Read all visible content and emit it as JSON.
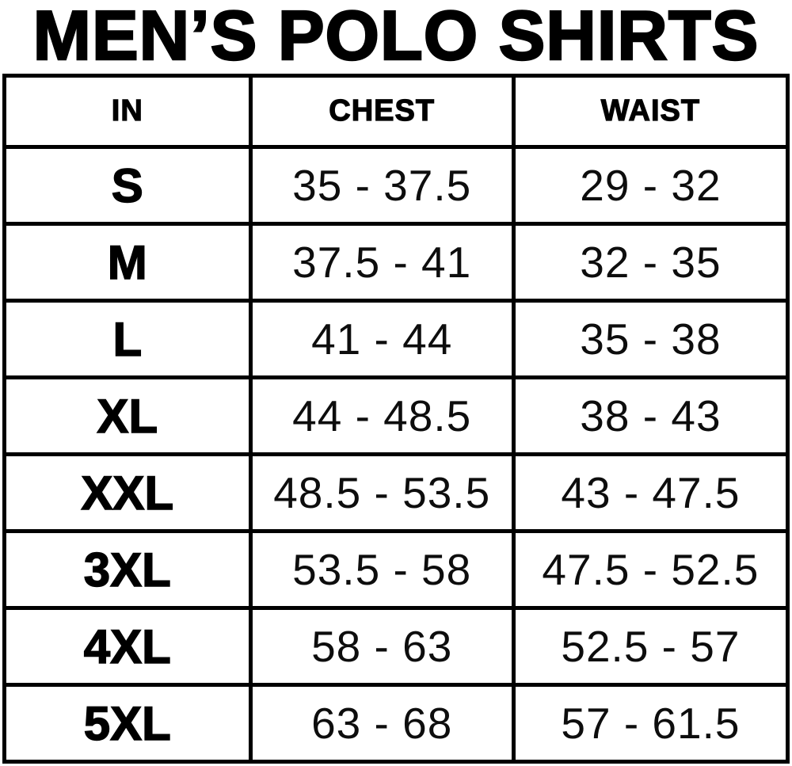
{
  "title": "MEN’S POLO SHIRTS",
  "table": {
    "headers": [
      "IN",
      "CHEST",
      "WAIST"
    ],
    "rows": [
      {
        "size": "S",
        "chest": "35 - 37.5",
        "waist": "29 - 32"
      },
      {
        "size": "M",
        "chest": "37.5 - 41",
        "waist": "32 - 35"
      },
      {
        "size": "L",
        "chest": "41 - 44",
        "waist": "35 - 38"
      },
      {
        "size": "XL",
        "chest": "44 - 48.5",
        "waist": "38 - 43"
      },
      {
        "size": "XXL",
        "chest": "48.5 - 53.5",
        "waist": "43 - 47.5"
      },
      {
        "size": "3XL",
        "chest": "53.5 - 58",
        "waist": "47.5 - 52.5"
      },
      {
        "size": "4XL",
        "chest": "58 - 63",
        "waist": "52.5 - 57"
      },
      {
        "size": "5XL",
        "chest": "63 - 68",
        "waist": "57 - 61.5"
      }
    ]
  },
  "chart_data": {
    "type": "table",
    "title": "MEN'S POLO SHIRTS",
    "columns": [
      "IN",
      "CHEST",
      "WAIST"
    ],
    "rows": [
      [
        "S",
        "35 - 37.5",
        "29 - 32"
      ],
      [
        "M",
        "37.5 - 41",
        "32 - 35"
      ],
      [
        "L",
        "41 - 44",
        "35 - 38"
      ],
      [
        "XL",
        "44 - 48.5",
        "38 - 43"
      ],
      [
        "XXL",
        "48.5 - 53.5",
        "43 - 47.5"
      ],
      [
        "3XL",
        "53.5 - 58",
        "47.5 - 52.5"
      ],
      [
        "4XL",
        "58 - 63",
        "52.5 - 57"
      ],
      [
        "5XL",
        "63 - 68",
        "57 - 61.5"
      ]
    ]
  },
  "colors": {
    "background": "#ffffff",
    "border": "#000000",
    "text": "#000000"
  }
}
